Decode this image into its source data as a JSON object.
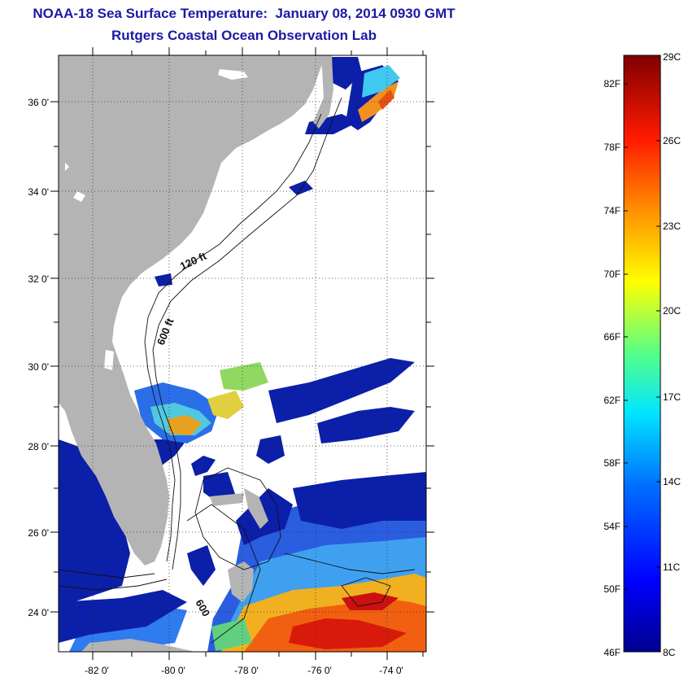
{
  "header": {
    "title_line1": "NOAA-18 Sea Surface Temperature:  January 08, 2014 0930 GMT",
    "title_line2": "Rutgers Coastal Ocean Observation Lab"
  },
  "map": {
    "lon_labels": [
      "-82 0'",
      "-80 0'",
      "-78 0'",
      "-76 0'",
      "-74 0'"
    ],
    "lat_labels": [
      "36 0'",
      "34 0'",
      "32 0'",
      "30 0'",
      "28 0'",
      "26 0'",
      "24 0'"
    ],
    "contour_labels": [
      "120 ft",
      "600 ft",
      "600"
    ],
    "colors": {
      "land": "#b4b4b4",
      "ocean_clear": "#ffffff",
      "cold_water": "#0b1fa8"
    }
  },
  "colorbar": {
    "fahrenheit_labels": [
      "82F",
      "78F",
      "74F",
      "70F",
      "66F",
      "62F",
      "58F",
      "54F",
      "50F",
      "46F"
    ],
    "celsius_labels": [
      "29C",
      "26C",
      "23C",
      "20C",
      "17C",
      "14C",
      "11C",
      "8C"
    ],
    "min_c": 8,
    "max_c": 29
  }
}
